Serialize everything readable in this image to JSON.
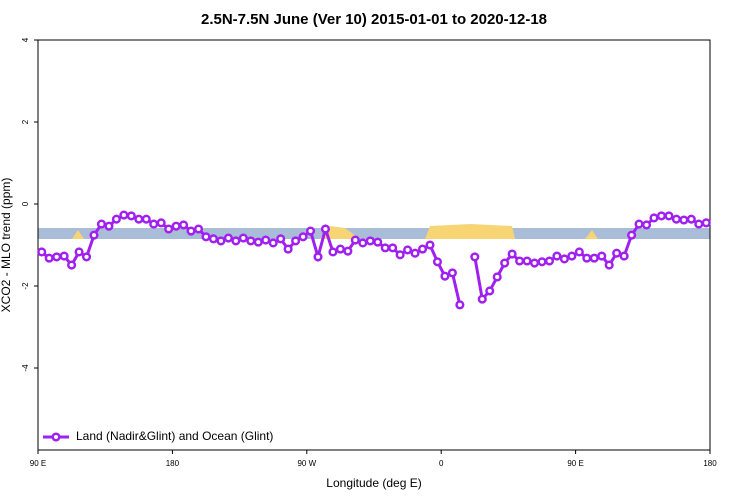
{
  "chart_data": {
    "type": "line",
    "title": "2.5N-7.5N June (Ver 10)   2015-01-01 to 2020-12-18",
    "x_label": "Longitude (deg E)",
    "y_label": "XCO2 - MLO trend (ppm)",
    "xlim": [
      90,
      540
    ],
    "ylim": [
      -6,
      4
    ],
    "xticks": [
      {
        "value": 90,
        "label": "90 E"
      },
      180,
      {
        "value": 270,
        "label": "90 W"
      },
      {
        "value": 360,
        "label": "0"
      },
      {
        "value": 450,
        "label": "90 E"
      },
      {
        "value": 540,
        "label": "180"
      }
    ],
    "yticks": [
      -4,
      -2,
      0,
      2,
      4
    ],
    "legend": "bottom-left",
    "x": [
      92.5,
      97.5,
      102.5,
      107.5,
      112.5,
      117.5,
      122.5,
      127.5,
      132.5,
      137.5,
      142.5,
      147.5,
      152.5,
      157.5,
      162.5,
      167.5,
      172.5,
      177.5,
      182.5,
      187.5,
      192.5,
      197.5,
      202.5,
      207.5,
      212.5,
      217.5,
      222.5,
      227.5,
      232.5,
      237.5,
      242.5,
      247.5,
      252.5,
      257.5,
      262.5,
      267.5,
      272.5,
      277.5,
      282.5,
      287.5,
      292.5,
      297.5,
      302.5,
      307.5,
      312.5,
      317.5,
      322.5,
      327.5,
      332.5,
      337.5,
      342.5,
      347.5,
      352.5,
      357.5,
      362.5,
      367.5,
      372.5,
      377.5,
      382.5,
      387.5,
      392.5,
      397.5,
      402.5,
      407.5,
      412.5,
      417.5,
      422.5,
      427.5,
      432.5,
      437.5,
      442.5,
      447.5,
      452.5,
      457.5,
      462.5,
      467.5,
      472.5,
      477.5,
      482.5,
      487.5,
      492.5,
      497.5,
      502.5,
      507.5,
      512.5,
      517.5,
      522.5,
      527.5,
      532.5,
      537.5
    ],
    "series": [
      {
        "name": "Land (Nadir&Glint) and Ocean (Glint)",
        "color": "#a020f0",
        "values": [
          -1.17,
          -1.32,
          -1.29,
          -1.27,
          -1.49,
          -1.17,
          -1.29,
          -0.76,
          -0.49,
          -0.54,
          -0.37,
          -0.27,
          -0.29,
          -0.37,
          -0.37,
          -0.49,
          -0.46,
          -0.61,
          -0.54,
          -0.51,
          -0.66,
          -0.61,
          -0.8,
          -0.85,
          -0.9,
          -0.83,
          -0.9,
          -0.83,
          -0.9,
          -0.93,
          -0.88,
          -0.95,
          -0.85,
          -1.1,
          -0.9,
          -0.8,
          -0.66,
          -1.29,
          -0.61,
          -1.17,
          -1.1,
          -1.15,
          -0.88,
          -0.95,
          -0.9,
          -0.93,
          -1.07,
          -1.07,
          -1.24,
          -1.12,
          -1.2,
          -1.1,
          -1.0,
          -1.41,
          -1.76,
          -1.68,
          -2.46,
          null,
          -1.29,
          -2.32,
          -2.12,
          -1.78,
          -1.44,
          -1.22,
          -1.39,
          -1.39,
          -1.44,
          -1.41,
          -1.39,
          -1.27,
          -1.34,
          -1.27,
          -1.17,
          -1.32,
          -1.32,
          -1.27,
          -1.49,
          -1.2,
          -1.27,
          -0.76,
          -0.49,
          -0.51,
          -0.34,
          -0.29,
          -0.29,
          -0.37,
          -0.39,
          -0.37,
          -0.49,
          -0.46
        ]
      }
    ]
  }
}
